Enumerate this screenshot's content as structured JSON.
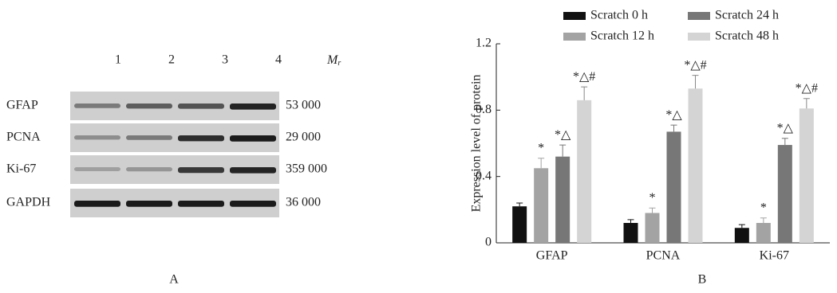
{
  "blot": {
    "lanes": [
      "1",
      "2",
      "3",
      "4"
    ],
    "mr_label": {
      "main": "M",
      "sub": "r"
    },
    "rows": [
      {
        "name": "GFAP",
        "mr": "53 000"
      },
      {
        "name": "PCNA",
        "mr": "29 000"
      },
      {
        "name": "Ki-67",
        "mr": "359 000"
      },
      {
        "name": "GAPDH",
        "mr": "36 000"
      }
    ],
    "panel_label": "A"
  },
  "chart_data": {
    "type": "bar",
    "panel_label": "B",
    "y_label": "Expression level of protein",
    "categories": [
      "GFAP",
      "PCNA",
      "Ki-67"
    ],
    "ylim": [
      0,
      1.2
    ],
    "yticks": [
      0,
      0.4,
      0.8,
      1.2
    ],
    "series": [
      {
        "name": "Scratch 0 h",
        "color": "#111111",
        "values": [
          0.22,
          0.12,
          0.09
        ],
        "errors": [
          0.02,
          0.02,
          0.02
        ],
        "annotations": [
          null,
          null,
          null
        ]
      },
      {
        "name": "Scratch 12 h",
        "color": "#a3a3a3",
        "values": [
          0.45,
          0.18,
          0.12
        ],
        "errors": [
          0.06,
          0.03,
          0.03
        ],
        "annotations": [
          "*",
          "*",
          "*"
        ]
      },
      {
        "name": "Scratch 24 h",
        "color": "#777777",
        "values": [
          0.52,
          0.67,
          0.59
        ],
        "errors": [
          0.07,
          0.04,
          0.04
        ],
        "annotations": [
          "*△",
          "*△",
          "*△"
        ]
      },
      {
        "name": "Scratch 48 h",
        "color": "#d4d4d4",
        "values": [
          0.86,
          0.93,
          0.81
        ],
        "errors": [
          0.08,
          0.08,
          0.06
        ],
        "annotations": [
          "*△#",
          "*△#",
          "*△#"
        ]
      }
    ]
  }
}
